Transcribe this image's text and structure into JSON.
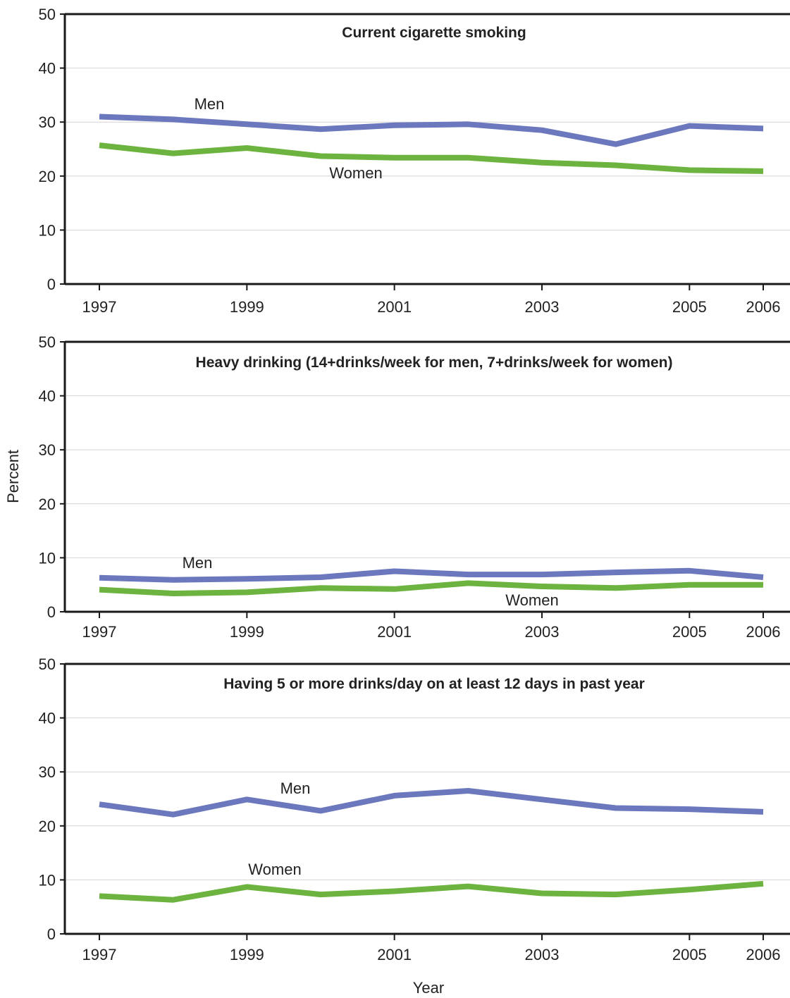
{
  "ylabel": "Percent",
  "xlabel": "Year",
  "x_tick_labels": [
    "1997",
    "1999",
    "2001",
    "2003",
    "2005",
    "2006"
  ],
  "y_tick_labels": [
    "0",
    "10",
    "20",
    "30",
    "40",
    "50"
  ],
  "colors": {
    "Men": "#6b78bd",
    "Women": "#6cb33f",
    "axis": "#1a1a1a",
    "grid": "#d4d4d4"
  },
  "chart_data": [
    {
      "type": "line",
      "title": "Current cigarette smoking",
      "x": [
        1997,
        1998,
        1999,
        2000,
        2001,
        2002,
        2003,
        2004,
        2005,
        2006
      ],
      "series": [
        {
          "name": "Men",
          "values": [
            31.0,
            30.5,
            29.6,
            28.7,
            29.4,
            29.6,
            28.5,
            25.9,
            29.3,
            28.8
          ]
        },
        {
          "name": "Women",
          "values": [
            25.7,
            24.2,
            25.2,
            23.7,
            23.4,
            23.4,
            22.5,
            22.0,
            21.1,
            20.9
          ]
        }
      ],
      "xlabel": "Year",
      "ylabel": "Percent",
      "ylim": [
        0,
        50
      ],
      "grid": true
    },
    {
      "type": "line",
      "title": "Heavy drinking (14+drinks/week for men, 7+drinks/week for women)",
      "x": [
        1997,
        1998,
        1999,
        2000,
        2001,
        2002,
        2003,
        2004,
        2005,
        2006
      ],
      "series": [
        {
          "name": "Men",
          "values": [
            6.3,
            5.9,
            6.1,
            6.4,
            7.5,
            6.9,
            6.9,
            7.3,
            7.6,
            6.4
          ]
        },
        {
          "name": "Women",
          "values": [
            4.1,
            3.4,
            3.6,
            4.4,
            4.2,
            5.3,
            4.7,
            4.4,
            5.0,
            5.0
          ]
        }
      ],
      "xlabel": "Year",
      "ylabel": "Percent",
      "ylim": [
        0,
        50
      ],
      "grid": true
    },
    {
      "type": "line",
      "title": "Having 5 or more drinks/day on at least 12 days in past year",
      "x": [
        1997,
        1998,
        1999,
        2000,
        2001,
        2002,
        2003,
        2004,
        2005,
        2006
      ],
      "series": [
        {
          "name": "Men",
          "values": [
            24.0,
            22.1,
            24.9,
            22.8,
            25.6,
            26.5,
            24.9,
            23.3,
            23.1,
            22.6
          ]
        },
        {
          "name": "Women",
          "values": [
            7.0,
            6.3,
            8.7,
            7.3,
            7.9,
            8.8,
            7.5,
            7.3,
            8.2,
            9.3
          ]
        }
      ],
      "xlabel": "Year",
      "ylabel": "Percent",
      "ylim": [
        0,
        50
      ],
      "grid": true
    }
  ]
}
